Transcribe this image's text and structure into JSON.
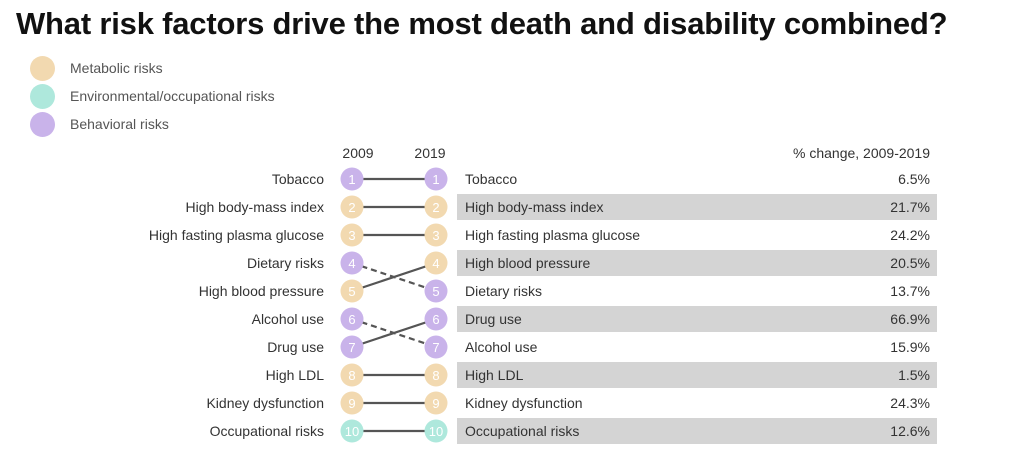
{
  "title": "What risk factors drive the most death and disability combined?",
  "legend": [
    {
      "label": "Metabolic risks",
      "category": "metabolic"
    },
    {
      "label": "Environmental/occupational risks",
      "category": "environmental"
    },
    {
      "label": "Behavioral risks",
      "category": "behavioral"
    }
  ],
  "colors": {
    "metabolic": "#f2d9b0",
    "environmental": "#aee8dc",
    "behavioral": "#c9b3ea",
    "row_shade": "#d4d4d4",
    "line": "#555555"
  },
  "chart_data": {
    "type": "slope",
    "title": "What risk factors drive the most death and disability combined?",
    "year_start_label": "2009",
    "year_end_label": "2019",
    "change_header": "% change, 2009-2019",
    "rank_2009": [
      {
        "rank": 1,
        "label": "Tobacco",
        "category": "behavioral"
      },
      {
        "rank": 2,
        "label": "High body-mass index",
        "category": "metabolic"
      },
      {
        "rank": 3,
        "label": "High fasting plasma glucose",
        "category": "metabolic"
      },
      {
        "rank": 4,
        "label": "Dietary risks",
        "category": "behavioral"
      },
      {
        "rank": 5,
        "label": "High blood pressure",
        "category": "metabolic"
      },
      {
        "rank": 6,
        "label": "Alcohol use",
        "category": "behavioral"
      },
      {
        "rank": 7,
        "label": "Drug use",
        "category": "behavioral"
      },
      {
        "rank": 8,
        "label": "High LDL",
        "category": "metabolic"
      },
      {
        "rank": 9,
        "label": "Kidney dysfunction",
        "category": "metabolic"
      },
      {
        "rank": 10,
        "label": "Occupational risks",
        "category": "environmental"
      }
    ],
    "rank_2019": [
      {
        "rank": 1,
        "label": "Tobacco",
        "category": "behavioral",
        "change": "6.5%"
      },
      {
        "rank": 2,
        "label": "High body-mass index",
        "category": "metabolic",
        "change": "21.7%"
      },
      {
        "rank": 3,
        "label": "High fasting plasma glucose",
        "category": "metabolic",
        "change": "24.2%"
      },
      {
        "rank": 4,
        "label": "High blood pressure",
        "category": "metabolic",
        "change": "20.5%"
      },
      {
        "rank": 5,
        "label": "Dietary risks",
        "category": "behavioral",
        "change": "13.7%"
      },
      {
        "rank": 6,
        "label": "Drug use",
        "category": "behavioral",
        "change": "66.9%"
      },
      {
        "rank": 7,
        "label": "Alcohol use",
        "category": "behavioral",
        "change": "15.9%"
      },
      {
        "rank": 8,
        "label": "High LDL",
        "category": "metabolic",
        "change": "1.5%"
      },
      {
        "rank": 9,
        "label": "Kidney dysfunction",
        "category": "metabolic",
        "change": "24.3%"
      },
      {
        "rank": 10,
        "label": "Occupational risks",
        "category": "environmental",
        "change": "12.6%"
      }
    ]
  }
}
